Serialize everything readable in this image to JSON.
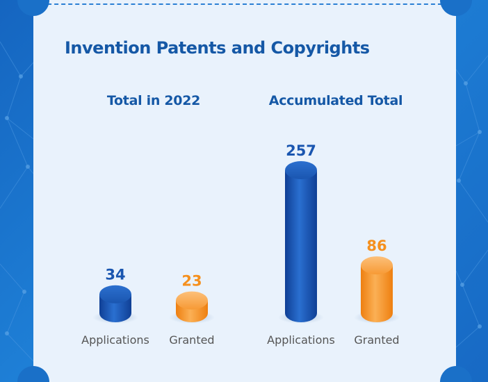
{
  "chart_data": {
    "type": "bar",
    "title": "Invention Patents and Copyrights",
    "groups": [
      {
        "name": "Total in 2022",
        "categories": [
          "Applications",
          "Granted"
        ],
        "values": [
          34,
          23
        ]
      },
      {
        "name": "Accumulated Total",
        "categories": [
          "Applications",
          "Granted"
        ],
        "values": [
          257,
          86
        ]
      }
    ],
    "series_colors": {
      "Applications": "#1a56b0",
      "Granted": "#f5901e"
    }
  },
  "colors": {
    "title": "#1558a6",
    "applications": "#1a56b0",
    "granted": "#f5901e",
    "label": "#555555",
    "panel": "#e9f2fc",
    "frame": "#1a6fc6"
  }
}
